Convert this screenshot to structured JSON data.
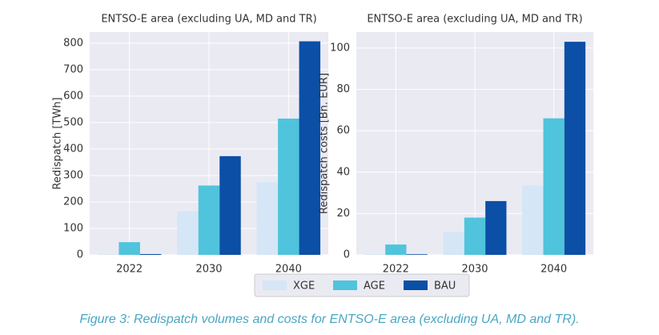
{
  "chart_data": [
    {
      "type": "bar",
      "title": "ENTSO-E area (excluding UA, MD and TR)",
      "y_label": "Redispatch [TWh]",
      "categories": [
        "2022",
        "2030",
        "2040"
      ],
      "series": [
        {
          "name": "XGE",
          "color": "#d5e6f6",
          "values": [
            2,
            165,
            275
          ]
        },
        {
          "name": "AGE",
          "color": "#4fc4dc",
          "values": [
            48,
            262,
            515
          ]
        },
        {
          "name": "BAU",
          "color": "#0b4fa6",
          "values": [
            3,
            373,
            807
          ]
        }
      ],
      "ylim": [
        0,
        842
      ],
      "yticks": [
        0,
        100,
        200,
        300,
        400,
        500,
        600,
        700,
        800
      ],
      "grid": true
    },
    {
      "type": "bar",
      "title": "ENTSO-E area (excluding UA, MD and TR)",
      "y_label": "Redispatch costs [Bn. EUR]",
      "categories": [
        "2022",
        "2030",
        "2040"
      ],
      "series": [
        {
          "name": "XGE",
          "color": "#d5e6f6",
          "values": [
            0.3,
            11,
            33.5
          ]
        },
        {
          "name": "AGE",
          "color": "#4fc4dc",
          "values": [
            5,
            18,
            66
          ]
        },
        {
          "name": "BAU",
          "color": "#0b4fa6",
          "values": [
            0.3,
            26,
            103
          ]
        }
      ],
      "ylim": [
        0,
        107.7
      ],
      "yticks": [
        0,
        20,
        40,
        60,
        80,
        100
      ],
      "grid": true
    }
  ],
  "caption": "Figure 3: Redispatch volumes and costs for ENTSO-E area (excluding UA, MD and TR)."
}
